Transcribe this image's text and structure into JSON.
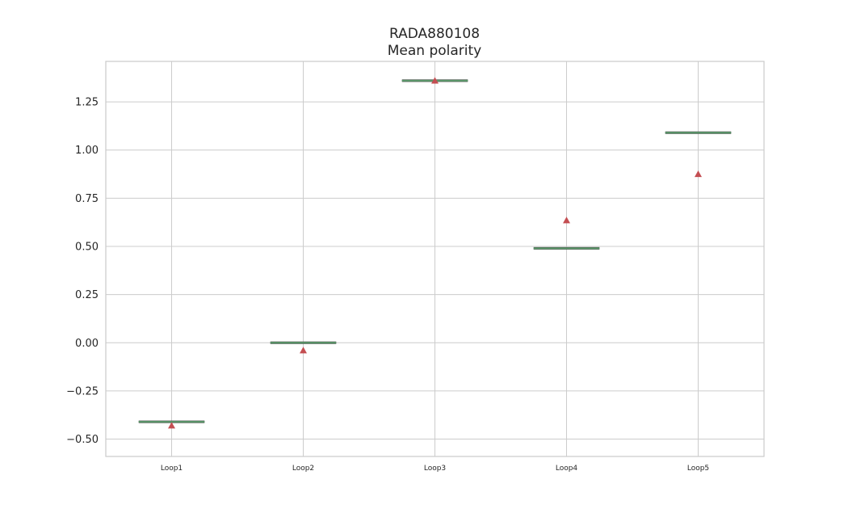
{
  "chart_data": {
    "type": "box",
    "title": "RADA880108",
    "subtitle": "Mean polarity",
    "xlabel": "",
    "ylabel": "",
    "categories": [
      "Loop1",
      "Loop2",
      "Loop3",
      "Loop4",
      "Loop5"
    ],
    "medians": [
      -0.41,
      0.0,
      1.36,
      0.49,
      1.09
    ],
    "means": [
      -0.43,
      -0.04,
      1.36,
      0.635,
      0.875
    ],
    "ylim": [
      -0.59,
      1.46
    ],
    "yticks": [
      -0.5,
      -0.25,
      0.0,
      0.25,
      0.5,
      0.75,
      1.0,
      1.25
    ],
    "ytick_labels": [
      "−0.50",
      "−0.25",
      "0.00",
      "0.25",
      "0.50",
      "0.75",
      "1.00",
      "1.25"
    ],
    "grid": true,
    "colors": {
      "median": "#5b9a6b",
      "mean_marker": "#c44e52",
      "grid": "#cccccc",
      "axes_edge": "#cccccc",
      "text": "#262626"
    }
  }
}
